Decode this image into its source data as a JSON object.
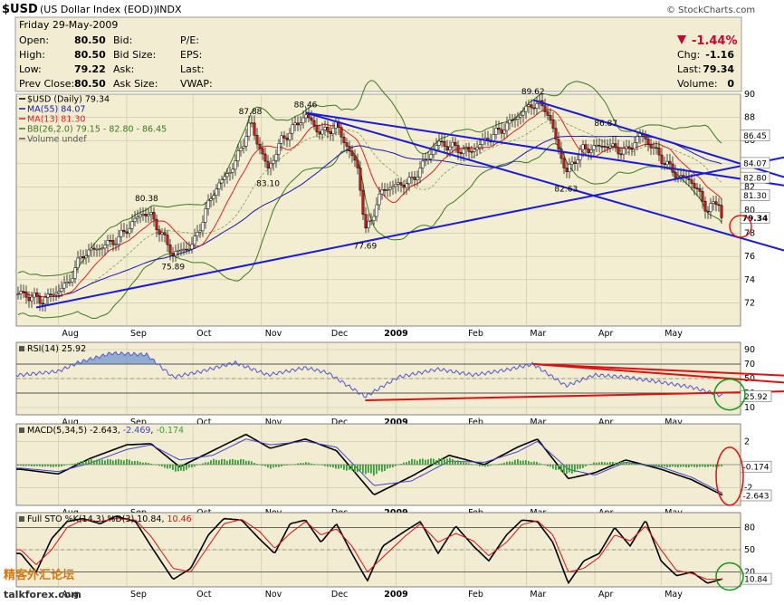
{
  "header": {
    "ticker": "$USD",
    "name": "(US Dollar Index (EOD))",
    "exchange": "INDX",
    "source": "© StockCharts.com"
  },
  "info": {
    "date": "Friday  29-May-2009",
    "open_label": "Open:",
    "open": "80.50",
    "high_label": "High:",
    "high": "80.50",
    "low_label": "Low:",
    "low": "79.22",
    "prev_label": "Prev Close:",
    "prev": "80.50",
    "bid_label": "Bid:",
    "bid_size_label": "Bid Size:",
    "ask_label": "Ask:",
    "ask_size_label": "Ask Size:",
    "pe_label": "P/E:",
    "eps_label": "EPS:",
    "last_label": "Last:",
    "vwap_label": "VWAP:",
    "pct_change": "-1.44%",
    "chg_label": "Chg:",
    "chg": "-1.16",
    "last_label2": "Last:",
    "last": "79.34",
    "volume_label": "Volume:",
    "volume": "0"
  },
  "colors": {
    "panel_bg": "#f1ecd2",
    "price_bg": "#f3eed2",
    "up_candle": "#ffffff",
    "down_candle": "#dd1111",
    "ma55": "#1a1aaa",
    "ma13": "#dd2222",
    "bb_band": "#3a7a1a",
    "bb_mid": "#7a9a5a",
    "trend_blue": "#1a1add",
    "trend_red": "#dd1111",
    "rsi_line": "#5555cc",
    "macd": "#000000",
    "macd_signal": "#4444cc",
    "macd_hist": "#3aa03a",
    "sto_k": "#000000",
    "sto_d": "#dd1111",
    "circle_red": "#dd1111",
    "circle_green": "#119911"
  },
  "watermark": {
    "line1": "精客外汇论坛",
    "line2": "talkforex.com"
  },
  "chart_data": [
    {
      "type": "candlestick",
      "title": "$USD (Daily) 79.34",
      "legend": [
        "$USD (Daily) 79.34",
        "MA(55) 84.07",
        "MA(13) 81.30",
        "BB(26,2.0) 79.15 - 82.80 - 86.45",
        "Volume undef"
      ],
      "ylim": [
        70,
        90
      ],
      "y_ticks": [
        72,
        74,
        76,
        78,
        80,
        82,
        84,
        86,
        88,
        90
      ],
      "x_ticks": [
        "Aug",
        "Sep",
        "Oct",
        "Nov",
        "Dec",
        "2009",
        "Feb",
        "Mar",
        "Apr",
        "May"
      ],
      "close_keypoints": [
        {
          "date": "2008-07-15",
          "value": 72.8
        },
        {
          "date": "2008-07-25",
          "value": 72.2
        },
        {
          "date": "2008-08-05",
          "value": 73.6
        },
        {
          "date": "2008-08-12",
          "value": 76.2
        },
        {
          "date": "2008-08-20",
          "value": 76.8
        },
        {
          "date": "2008-08-28",
          "value": 77.5
        },
        {
          "date": "2008-09-08",
          "value": 79.8
        },
        {
          "date": "2008-09-12",
          "value": 79.5
        },
        {
          "date": "2008-09-22",
          "value": 76.2
        },
        {
          "date": "2008-10-01",
          "value": 77.0
        },
        {
          "date": "2008-10-10",
          "value": 81.5
        },
        {
          "date": "2008-10-20",
          "value": 84.0
        },
        {
          "date": "2008-10-27",
          "value": 87.5
        },
        {
          "date": "2008-11-04",
          "value": 83.5
        },
        {
          "date": "2008-11-10",
          "value": 86.0
        },
        {
          "date": "2008-11-21",
          "value": 88.2
        },
        {
          "date": "2008-11-28",
          "value": 86.6
        },
        {
          "date": "2008-12-05",
          "value": 87.3
        },
        {
          "date": "2008-12-15",
          "value": 83.5
        },
        {
          "date": "2008-12-18",
          "value": 78.0
        },
        {
          "date": "2008-12-26",
          "value": 81.8
        },
        {
          "date": "2009-01-08",
          "value": 82.5
        },
        {
          "date": "2009-01-20",
          "value": 85.8
        },
        {
          "date": "2009-02-03",
          "value": 85.0
        },
        {
          "date": "2009-02-18",
          "value": 87.0
        },
        {
          "date": "2009-03-04",
          "value": 89.2
        },
        {
          "date": "2009-03-10",
          "value": 88.8
        },
        {
          "date": "2009-03-19",
          "value": 83.2
        },
        {
          "date": "2009-03-26",
          "value": 85.2
        },
        {
          "date": "2009-04-06",
          "value": 85.6
        },
        {
          "date": "2009-04-15",
          "value": 85.0
        },
        {
          "date": "2009-04-22",
          "value": 86.6
        },
        {
          "date": "2009-05-01",
          "value": 84.5
        },
        {
          "date": "2009-05-08",
          "value": 83.0
        },
        {
          "date": "2009-05-15",
          "value": 82.5
        },
        {
          "date": "2009-05-22",
          "value": 80.0
        },
        {
          "date": "2009-05-27",
          "value": 80.8
        },
        {
          "date": "2009-05-29",
          "value": 79.34
        }
      ],
      "peak_labels": [
        {
          "date": "2008-09-10",
          "label": "80.38",
          "value": 80.38
        },
        {
          "date": "2008-09-22",
          "label": "75.89",
          "value": 75.89
        },
        {
          "date": "2008-10-27",
          "label": "87.88",
          "value": 87.88
        },
        {
          "date": "2008-11-04",
          "label": "83.10",
          "value": 83.1
        },
        {
          "date": "2008-11-21",
          "label": "88.46",
          "value": 88.46
        },
        {
          "date": "2008-12-18",
          "label": "77.69",
          "value": 77.69
        },
        {
          "date": "2009-03-04",
          "label": "89.62",
          "value": 89.62
        },
        {
          "date": "2009-03-19",
          "label": "82.63",
          "value": 82.63
        },
        {
          "date": "2009-04-06",
          "label": "86.87",
          "value": 86.87
        }
      ],
      "right_tags": [
        {
          "label": "86.45",
          "value": 86.45
        },
        {
          "label": "84.07",
          "value": 84.07
        },
        {
          "label": "82.80",
          "value": 82.8
        },
        {
          "label": "81.30",
          "value": 81.3
        },
        {
          "label": "79.34",
          "value": 79.34
        }
      ],
      "trendlines": [
        {
          "from": {
            "date": "2008-07-22",
            "value": 71.6
          },
          "to": {
            "date": "2009-06-06",
            "value": 83.8
          }
        },
        {
          "from": {
            "date": "2008-11-21",
            "value": 88.4
          },
          "to": {
            "date": "2009-06-06",
            "value": 77.6
          }
        },
        {
          "from": {
            "date": "2008-11-21",
            "value": 88.4
          },
          "to": {
            "date": "2009-06-06",
            "value": 82.7
          }
        },
        {
          "from": {
            "date": "2009-03-04",
            "value": 89.5
          },
          "to": {
            "date": "2009-06-06",
            "value": 84.0
          }
        }
      ]
    },
    {
      "type": "line",
      "title": "RSI(14) 25.92",
      "legend": [
        "RSI(14) 25.92"
      ],
      "ylim": [
        0,
        100
      ],
      "y_ticks": [
        10,
        30,
        50,
        70,
        90
      ],
      "reference_lines": [
        30,
        70
      ],
      "series": [
        {
          "name": "RSI(14)",
          "x": [
            "2008-07-15",
            "2008-08-01",
            "2008-08-10",
            "2008-08-25",
            "2008-09-10",
            "2008-09-22",
            "2008-10-05",
            "2008-10-20",
            "2008-11-04",
            "2008-11-21",
            "2008-12-01",
            "2008-12-18",
            "2009-01-02",
            "2009-01-20",
            "2009-02-05",
            "2009-02-20",
            "2009-03-04",
            "2009-03-19",
            "2009-04-01",
            "2009-04-15",
            "2009-05-01",
            "2009-05-15",
            "2009-05-29"
          ],
          "values": [
            55,
            60,
            72,
            85,
            83,
            52,
            60,
            72,
            55,
            65,
            58,
            25,
            52,
            63,
            55,
            62,
            70,
            40,
            55,
            52,
            45,
            38,
            25.92
          ]
        }
      ],
      "trendlines": [
        {
          "from": {
            "date": "2008-12-18",
            "value": 20
          },
          "to": {
            "date": "2009-06-06",
            "value": 31
          }
        },
        {
          "from": {
            "date": "2009-03-04",
            "value": 70
          },
          "to": {
            "date": "2009-06-06",
            "value": 57
          }
        },
        {
          "from": {
            "date": "2009-03-04",
            "value": 70
          },
          "to": {
            "date": "2009-06-06",
            "value": 49
          }
        }
      ],
      "right_tags": [
        {
          "label": "25.92",
          "value": 25.92
        }
      ]
    },
    {
      "type": "line",
      "title": "MACD(5,34,5) -2.643, -2.469, -0.174",
      "legend": [
        "MACD(5,34,5) -2.643",
        "-2.469",
        "-0.174"
      ],
      "ylim": [
        -3.5,
        3.5
      ],
      "y_ticks": [
        -2,
        0,
        2
      ],
      "series": [
        {
          "name": "MACD",
          "x": [
            "2008-07-15",
            "2008-08-01",
            "2008-08-15",
            "2008-09-01",
            "2008-09-12",
            "2008-09-25",
            "2008-10-10",
            "2008-10-25",
            "2008-11-05",
            "2008-11-21",
            "2008-12-05",
            "2008-12-22",
            "2009-01-08",
            "2009-01-25",
            "2009-02-10",
            "2009-02-25",
            "2009-03-06",
            "2009-03-20",
            "2009-04-01",
            "2009-04-15",
            "2009-05-01",
            "2009-05-15",
            "2009-05-29"
          ],
          "values": [
            -0.4,
            -0.8,
            0.5,
            1.7,
            1.8,
            -0.2,
            1.2,
            2.6,
            1.4,
            2.2,
            1.2,
            -2.6,
            -1.0,
            0.8,
            0.0,
            1.5,
            2.2,
            -1.2,
            -0.7,
            0.4,
            -0.4,
            -1.3,
            -2.643
          ]
        },
        {
          "name": "Signal",
          "x": [
            "2008-07-15",
            "2008-08-01",
            "2008-08-15",
            "2008-09-01",
            "2008-09-12",
            "2008-09-25",
            "2008-10-10",
            "2008-10-25",
            "2008-11-05",
            "2008-11-21",
            "2008-12-05",
            "2008-12-22",
            "2009-01-08",
            "2009-01-25",
            "2009-02-10",
            "2009-02-25",
            "2009-03-06",
            "2009-03-20",
            "2009-04-01",
            "2009-04-15",
            "2009-05-01",
            "2009-05-15",
            "2009-05-29"
          ],
          "values": [
            -0.3,
            -0.6,
            0.1,
            1.3,
            1.7,
            0.4,
            0.8,
            2.2,
            1.7,
            2.0,
            1.5,
            -1.8,
            -1.4,
            0.3,
            0.2,
            1.1,
            2.0,
            -0.4,
            -0.9,
            0.2,
            -0.2,
            -1.1,
            -2.469
          ]
        },
        {
          "name": "Histogram",
          "x": [
            "2008-07-15",
            "2008-08-01",
            "2008-08-15",
            "2008-09-01",
            "2008-09-12",
            "2008-09-25",
            "2008-10-10",
            "2008-10-25",
            "2008-11-05",
            "2008-11-21",
            "2008-12-05",
            "2008-12-22",
            "2009-01-08",
            "2009-01-25",
            "2009-02-10",
            "2009-02-25",
            "2009-03-06",
            "2009-03-20",
            "2009-04-01",
            "2009-04-15",
            "2009-05-01",
            "2009-05-15",
            "2009-05-29"
          ],
          "values": [
            -0.1,
            -0.2,
            0.4,
            0.4,
            0.1,
            -0.6,
            0.4,
            0.4,
            -0.3,
            0.2,
            -0.3,
            -0.8,
            0.4,
            0.5,
            -0.2,
            0.4,
            0.2,
            -0.8,
            0.2,
            0.2,
            -0.2,
            -0.2,
            -0.174
          ]
        }
      ],
      "right_tags": [
        {
          "label": "-0.174",
          "value": -0.174
        },
        {
          "label": "-2.643",
          "value": -2.643
        }
      ]
    },
    {
      "type": "line",
      "title": "Full STO %K(14,3) %D(3) 10.84, 10.46",
      "legend": [
        "Full STO %K(14,3) %D(3) 10.84",
        "10.46"
      ],
      "ylim": [
        0,
        100
      ],
      "y_ticks": [
        20,
        50,
        80
      ],
      "reference_lines": [
        20,
        80
      ],
      "series": [
        {
          "name": "%K",
          "x": [
            "2008-07-15",
            "2008-07-22",
            "2008-07-29",
            "2008-08-05",
            "2008-08-12",
            "2008-08-20",
            "2008-08-27",
            "2008-09-05",
            "2008-09-12",
            "2008-09-22",
            "2008-09-30",
            "2008-10-08",
            "2008-10-15",
            "2008-10-23",
            "2008-10-31",
            "2008-11-07",
            "2008-11-14",
            "2008-11-21",
            "2008-11-28",
            "2008-12-05",
            "2008-12-12",
            "2008-12-19",
            "2008-12-26",
            "2009-01-05",
            "2009-01-12",
            "2009-01-20",
            "2009-01-28",
            "2009-02-05",
            "2009-02-12",
            "2009-02-20",
            "2009-02-27",
            "2009-03-06",
            "2009-03-13",
            "2009-03-20",
            "2009-03-27",
            "2009-04-03",
            "2009-04-10",
            "2009-04-17",
            "2009-04-24",
            "2009-05-01",
            "2009-05-08",
            "2009-05-15",
            "2009-05-22",
            "2009-05-29"
          ],
          "values": [
            45,
            20,
            65,
            88,
            92,
            85,
            95,
            88,
            55,
            10,
            25,
            70,
            92,
            90,
            65,
            45,
            85,
            90,
            60,
            85,
            45,
            8,
            55,
            75,
            88,
            45,
            82,
            55,
            35,
            70,
            90,
            88,
            60,
            5,
            35,
            45,
            80,
            55,
            90,
            35,
            15,
            20,
            5,
            10.84
          ]
        },
        {
          "name": "%D",
          "x": [
            "2008-07-15",
            "2008-07-22",
            "2008-07-29",
            "2008-08-05",
            "2008-08-12",
            "2008-08-20",
            "2008-08-27",
            "2008-09-05",
            "2008-09-12",
            "2008-09-22",
            "2008-09-30",
            "2008-10-08",
            "2008-10-15",
            "2008-10-23",
            "2008-10-31",
            "2008-11-07",
            "2008-11-14",
            "2008-11-21",
            "2008-11-28",
            "2008-12-05",
            "2008-12-12",
            "2008-12-19",
            "2008-12-26",
            "2009-01-05",
            "2009-01-12",
            "2009-01-20",
            "2009-01-28",
            "2009-02-05",
            "2009-02-12",
            "2009-02-20",
            "2009-02-27",
            "2009-03-06",
            "2009-03-13",
            "2009-03-20",
            "2009-03-27",
            "2009-04-03",
            "2009-04-10",
            "2009-04-17",
            "2009-04-24",
            "2009-05-01",
            "2009-05-08",
            "2009-05-15",
            "2009-05-22",
            "2009-05-29"
          ],
          "values": [
            50,
            30,
            50,
            80,
            90,
            88,
            92,
            90,
            68,
            25,
            20,
            55,
            85,
            91,
            75,
            52,
            72,
            88,
            70,
            78,
            55,
            20,
            40,
            68,
            85,
            60,
            72,
            62,
            42,
            60,
            84,
            89,
            70,
            20,
            25,
            40,
            70,
            62,
            82,
            50,
            22,
            18,
            10,
            10.46
          ]
        }
      ],
      "right_tags": [
        {
          "label": "10.84",
          "value": 10.84
        }
      ]
    }
  ]
}
